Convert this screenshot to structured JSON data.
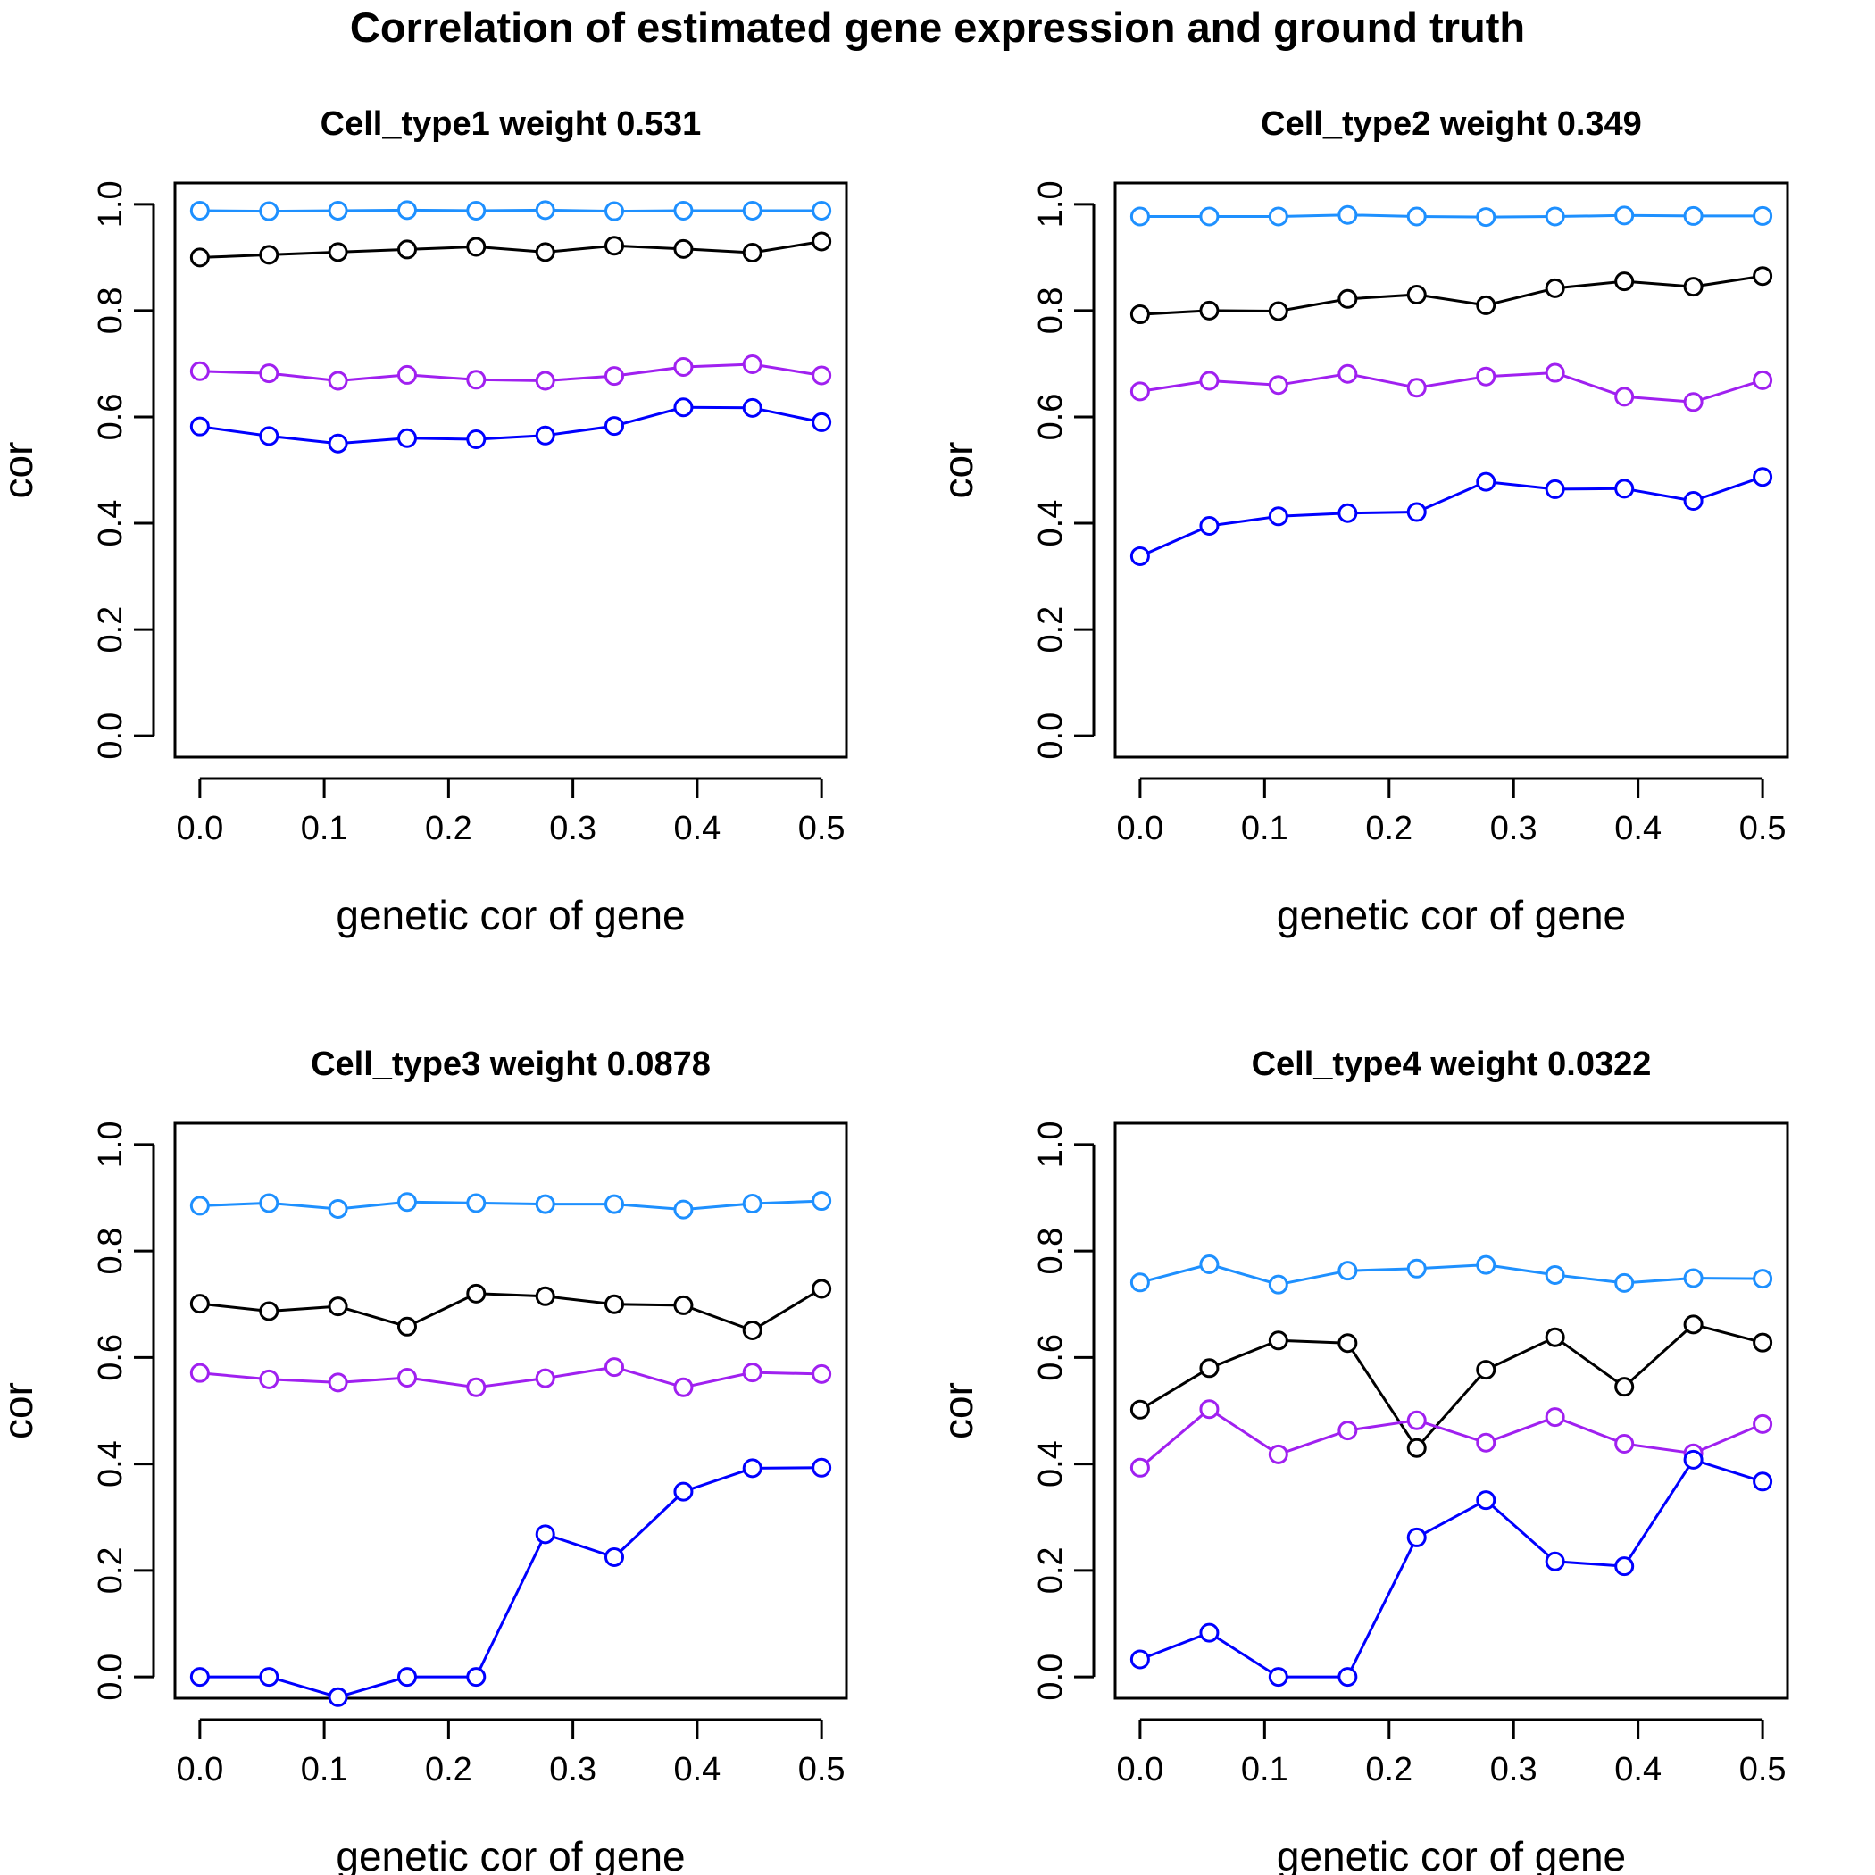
{
  "figure_title": "Correlation of estimated gene expression and ground truth",
  "series_colors": {
    "lightblue": "#1E90FF",
    "black": "#000000",
    "purple": "#A020F0",
    "blue": "#0000FF"
  },
  "chart_data": [
    {
      "type": "line",
      "title": "Cell_type1 weight 0.531",
      "xlabel": "genetic cor of gene",
      "ylabel": "cor",
      "xlim": [
        0,
        0.5
      ],
      "ylim": [
        0,
        1
      ],
      "xticks": [
        "0.0",
        "0.1",
        "0.2",
        "0.3",
        "0.4",
        "0.5"
      ],
      "yticks": [
        "0.0",
        "0.2",
        "0.4",
        "0.6",
        "0.8",
        "1.0"
      ],
      "x": [
        0.0,
        0.0556,
        0.1111,
        0.1667,
        0.2222,
        0.2778,
        0.3333,
        0.3889,
        0.4444,
        0.5
      ],
      "series": [
        {
          "name": "lightblue",
          "color": "#1E90FF",
          "values": [
            0.988,
            0.987,
            0.988,
            0.989,
            0.988,
            0.989,
            0.987,
            0.988,
            0.988,
            0.988
          ]
        },
        {
          "name": "black",
          "color": "#000000",
          "values": [
            0.9,
            0.905,
            0.91,
            0.915,
            0.92,
            0.91,
            0.922,
            0.916,
            0.909,
            0.93
          ]
        },
        {
          "name": "purple",
          "color": "#A020F0",
          "values": [
            0.686,
            0.682,
            0.668,
            0.679,
            0.67,
            0.668,
            0.677,
            0.694,
            0.699,
            0.678
          ]
        },
        {
          "name": "blue",
          "color": "#0000FF",
          "values": [
            0.582,
            0.564,
            0.55,
            0.56,
            0.558,
            0.565,
            0.583,
            0.618,
            0.617,
            0.59
          ]
        }
      ]
    },
    {
      "type": "line",
      "title": "Cell_type2 weight 0.349",
      "xlabel": "genetic cor of gene",
      "ylabel": "cor",
      "xlim": [
        0,
        0.5
      ],
      "ylim": [
        0,
        1
      ],
      "xticks": [
        "0.0",
        "0.1",
        "0.2",
        "0.3",
        "0.4",
        "0.5"
      ],
      "yticks": [
        "0.0",
        "0.2",
        "0.4",
        "0.6",
        "0.8",
        "1.0"
      ],
      "x": [
        0.0,
        0.0556,
        0.1111,
        0.1667,
        0.2222,
        0.2778,
        0.3333,
        0.3889,
        0.4444,
        0.5
      ],
      "series": [
        {
          "name": "lightblue",
          "color": "#1E90FF",
          "values": [
            0.977,
            0.977,
            0.977,
            0.98,
            0.977,
            0.976,
            0.977,
            0.979,
            0.978,
            0.978
          ]
        },
        {
          "name": "black",
          "color": "#000000",
          "values": [
            0.793,
            0.8,
            0.799,
            0.822,
            0.83,
            0.81,
            0.842,
            0.855,
            0.845,
            0.865
          ]
        },
        {
          "name": "purple",
          "color": "#A020F0",
          "values": [
            0.648,
            0.668,
            0.66,
            0.681,
            0.655,
            0.676,
            0.683,
            0.638,
            0.628,
            0.669
          ]
        },
        {
          "name": "blue",
          "color": "#0000FF",
          "values": [
            0.338,
            0.395,
            0.413,
            0.419,
            0.421,
            0.478,
            0.464,
            0.465,
            0.442,
            0.487
          ]
        }
      ]
    },
    {
      "type": "line",
      "title": "Cell_type3 weight 0.0878",
      "xlabel": "genetic cor of gene",
      "ylabel": "cor",
      "xlim": [
        0,
        0.5
      ],
      "ylim": [
        0,
        1
      ],
      "xticks": [
        "0.0",
        "0.1",
        "0.2",
        "0.3",
        "0.4",
        "0.5"
      ],
      "yticks": [
        "0.0",
        "0.2",
        "0.4",
        "0.6",
        "0.8",
        "1.0"
      ],
      "x": [
        0.0,
        0.0556,
        0.1111,
        0.1667,
        0.2222,
        0.2778,
        0.3333,
        0.3889,
        0.4444,
        0.5
      ],
      "series": [
        {
          "name": "lightblue",
          "color": "#1E90FF",
          "values": [
            0.885,
            0.89,
            0.879,
            0.892,
            0.89,
            0.888,
            0.888,
            0.878,
            0.889,
            0.894
          ]
        },
        {
          "name": "black",
          "color": "#000000",
          "values": [
            0.701,
            0.687,
            0.696,
            0.658,
            0.72,
            0.715,
            0.7,
            0.698,
            0.651,
            0.729
          ]
        },
        {
          "name": "purple",
          "color": "#A020F0",
          "values": [
            0.571,
            0.559,
            0.553,
            0.562,
            0.544,
            0.561,
            0.582,
            0.544,
            0.572,
            0.569
          ]
        },
        {
          "name": "blue",
          "color": "#0000FF",
          "values": [
            0.0,
            0.0,
            -0.038,
            0.0,
            0.0,
            0.268,
            0.225,
            0.348,
            0.392,
            0.393
          ]
        }
      ]
    },
    {
      "type": "line",
      "title": "Cell_type4 weight 0.0322",
      "xlabel": "genetic cor of gene",
      "ylabel": "cor",
      "xlim": [
        0,
        0.5
      ],
      "ylim": [
        0,
        1
      ],
      "xticks": [
        "0.0",
        "0.1",
        "0.2",
        "0.3",
        "0.4",
        "0.5"
      ],
      "yticks": [
        "0.0",
        "0.2",
        "0.4",
        "0.6",
        "0.8",
        "1.0"
      ],
      "x": [
        0.0,
        0.0556,
        0.1111,
        0.1667,
        0.2222,
        0.2778,
        0.3333,
        0.3889,
        0.4444,
        0.5
      ],
      "series": [
        {
          "name": "lightblue",
          "color": "#1E90FF",
          "values": [
            0.741,
            0.775,
            0.737,
            0.763,
            0.767,
            0.774,
            0.755,
            0.74,
            0.749,
            0.748
          ]
        },
        {
          "name": "black",
          "color": "#000000",
          "values": [
            0.502,
            0.58,
            0.632,
            0.627,
            0.43,
            0.577,
            0.638,
            0.545,
            0.662,
            0.628
          ]
        },
        {
          "name": "purple",
          "color": "#A020F0",
          "values": [
            0.393,
            0.503,
            0.418,
            0.463,
            0.482,
            0.44,
            0.488,
            0.438,
            0.42,
            0.475
          ]
        },
        {
          "name": "blue",
          "color": "#0000FF",
          "values": [
            0.033,
            0.083,
            0.0,
            0.0,
            0.262,
            0.332,
            0.217,
            0.208,
            0.408,
            0.367
          ]
        }
      ]
    }
  ]
}
